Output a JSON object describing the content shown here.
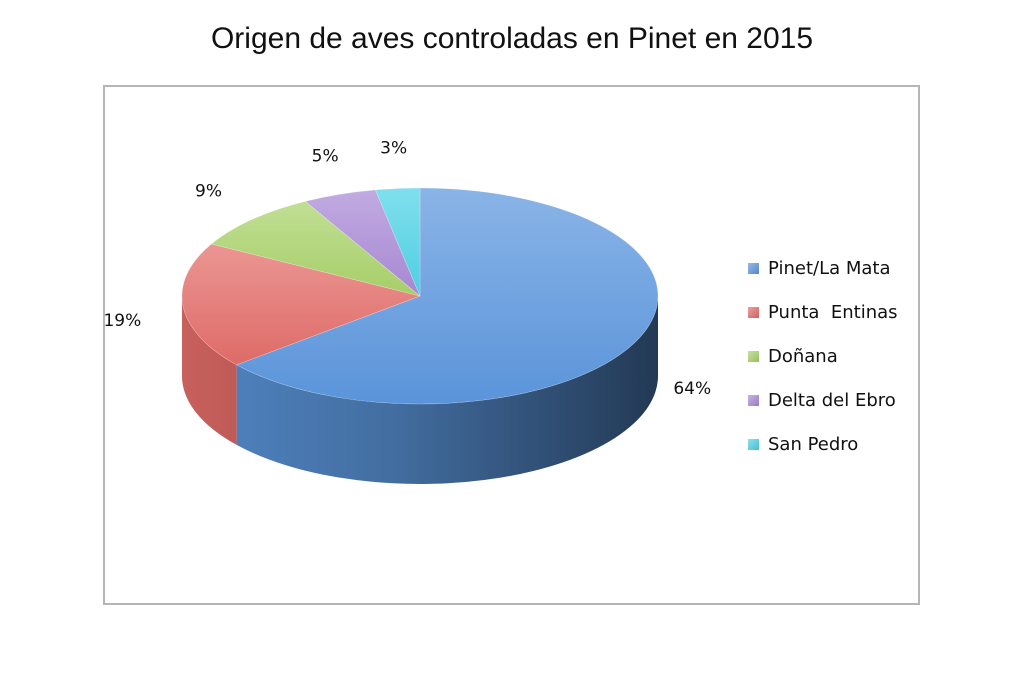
{
  "chart_data": {
    "type": "pie",
    "title": "Origen de aves controladas en Pinet en 2015",
    "slices": [
      {
        "name": "Pinet/La Mata",
        "value": 64,
        "label": "64%",
        "color": "#5c97de"
      },
      {
        "name": "Punta  Entinas",
        "value": 19,
        "label": "19%",
        "color": "#e36d69"
      },
      {
        "name": "Doñana",
        "value": 9,
        "label": "9%",
        "color": "#a9d26a"
      },
      {
        "name": "Delta del Ebro",
        "value": 5,
        "label": "5%",
        "color": "#a98ad6"
      },
      {
        "name": "San Pedro",
        "value": 3,
        "label": "3%",
        "color": "#4fd3e6"
      }
    ],
    "legend": "right"
  }
}
